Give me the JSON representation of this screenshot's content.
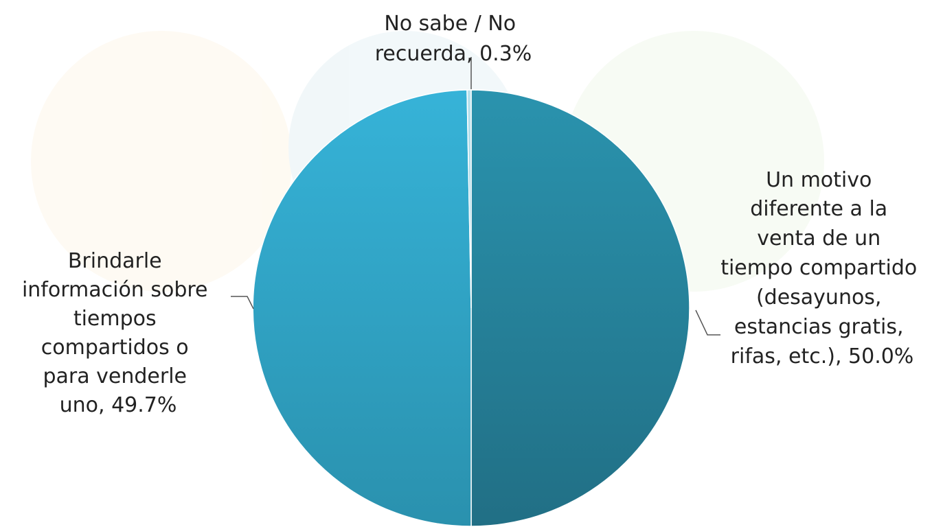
{
  "chart_data": {
    "type": "pie",
    "title": "",
    "slices": [
      {
        "name": "Un motivo diferente a la venta de un tiempo compartido (desayunos, estancias gratis, rifas, etc.)",
        "value": 50.0,
        "lines": [
          "Un motivo",
          "diferente a la",
          "venta de un",
          "tiempo compartido",
          "(desayunos,",
          "estancias gratis,",
          "rifas, etc.), 50.0%"
        ]
      },
      {
        "name": "Brindarle información sobre tiempos compartidos o para venderle uno",
        "value": 49.7,
        "lines": [
          "Brindarle",
          "información sobre",
          "tiempos",
          "compartidos o",
          "para venderle",
          "uno, 49.7%"
        ]
      },
      {
        "name": "No sabe / No recuerda",
        "value": 0.3,
        "lines": [
          "No sabe / No",
          "recuerda, 0.3%"
        ]
      }
    ],
    "colors": [
      "#2a8aa4",
      "#33aacc",
      "#a9d8e6"
    ],
    "legend": "none"
  }
}
